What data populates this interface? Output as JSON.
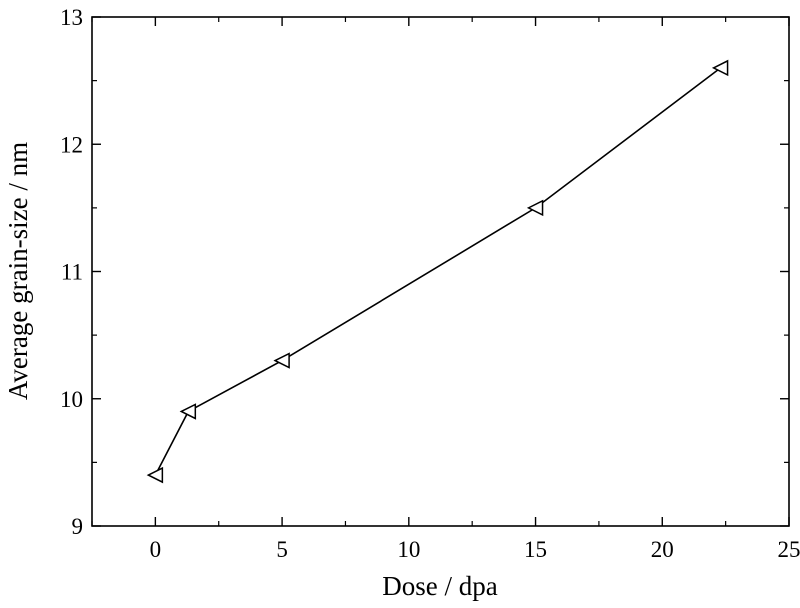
{
  "chart_data": {
    "type": "line",
    "title": "",
    "xlabel": "Dose / dpa",
    "ylabel": "Average grain-size / nm",
    "xlim": [
      -2.5,
      25
    ],
    "ylim": [
      9,
      13
    ],
    "x_ticks": [
      0,
      5,
      10,
      15,
      20,
      25
    ],
    "y_ticks": [
      9,
      10,
      11,
      12,
      13
    ],
    "grid": false,
    "marker": "left-pointing-triangle-open",
    "series": [
      {
        "x": [
          0,
          1.3,
          5,
          15,
          22.3
        ],
        "y": [
          9.4,
          9.9,
          10.3,
          11.5,
          12.6
        ]
      }
    ]
  }
}
